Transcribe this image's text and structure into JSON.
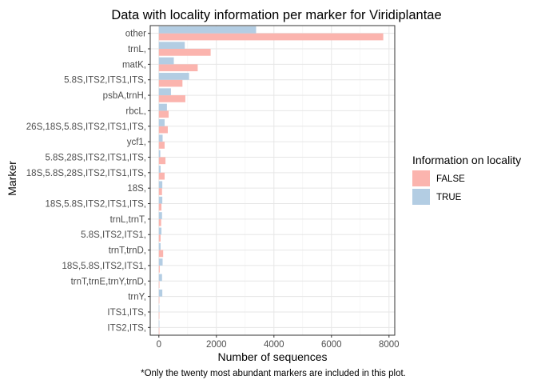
{
  "chart_data": {
    "type": "bar",
    "orientation": "horizontal",
    "title": "Data with locality information per marker for Viridiplantae",
    "xlabel": "Number of sequences",
    "ylabel": "Marker",
    "caption": "*Only the twenty most abundant markers are included in this plot.",
    "legend_title": "Information on locality",
    "legend_position": "right",
    "grid": true,
    "xlim": [
      -300,
      8200
    ],
    "x_ticks": [
      0,
      2000,
      4000,
      6000,
      8000
    ],
    "x_tick_labels": [
      "0",
      "2000",
      "4000",
      "6000",
      "8000"
    ],
    "categories": [
      "other",
      "trnL,",
      "matK,",
      "5.8S,ITS2,ITS1,ITS,",
      "psbA,trnH,",
      "rbcL,",
      "26S,18S,5.8S,ITS2,ITS1,ITS,",
      "ycf1,",
      "5.8S,28S,ITS2,ITS1,ITS,",
      "18S,5.8S,28S,ITS2,ITS1,ITS,",
      "18S,",
      "18S,5.8S,ITS2,ITS1,ITS,",
      "trnL,trnT,",
      "5.8S,ITS2,ITS1,",
      "trnT,trnD,",
      "18S,5.8S,ITS2,ITS1,",
      "trnT,trnE,trnY,trnD,",
      "trnY,",
      "ITS1,ITS,",
      "ITS2,ITS,"
    ],
    "series": [
      {
        "name": "FALSE",
        "color": "#FBB4AE",
        "values": [
          7800,
          1800,
          1350,
          820,
          920,
          340,
          310,
          200,
          230,
          200,
          110,
          90,
          80,
          60,
          150,
          30,
          20,
          15,
          10,
          10
        ]
      },
      {
        "name": "TRUE",
        "color": "#B3CDE3",
        "values": [
          3380,
          900,
          520,
          1050,
          420,
          280,
          200,
          130,
          50,
          60,
          120,
          120,
          110,
          90,
          60,
          130,
          110,
          120,
          10,
          10
        ]
      }
    ]
  }
}
